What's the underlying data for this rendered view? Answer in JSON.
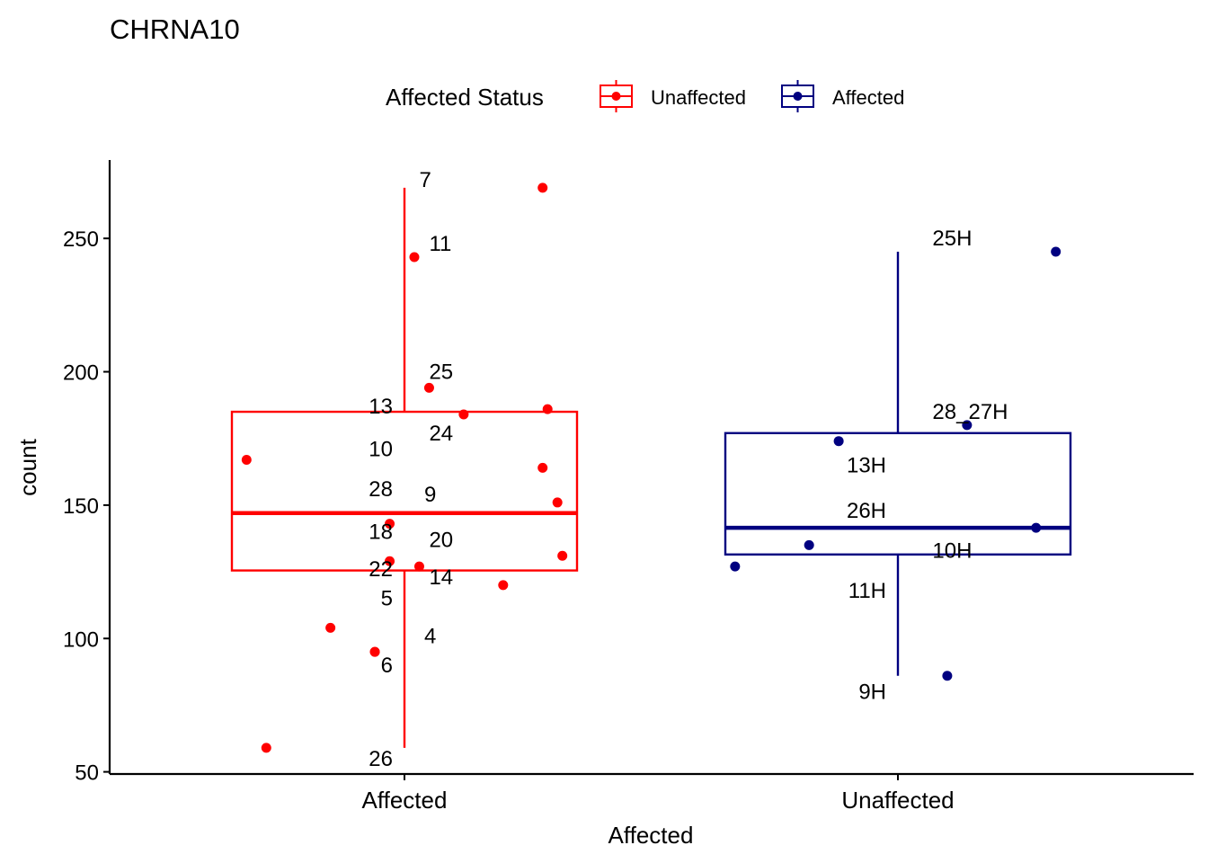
{
  "chart_data": {
    "type": "boxplot",
    "title": "CHRNA10",
    "xlabel": "Affected",
    "ylabel": "count",
    "ylim": [
      50,
      278
    ],
    "yticks": [
      50,
      100,
      150,
      200,
      250
    ],
    "grid": false,
    "legend": {
      "title": "Affected Status",
      "placement": "top",
      "entries": [
        {
          "label": "Unaffected",
          "color": "#FF0000"
        },
        {
          "label": "Affected",
          "color": "#000080"
        }
      ]
    },
    "categories": [
      "Affected",
      "Unaffected"
    ],
    "boxes": [
      {
        "category": "Affected",
        "color": "#FF0000",
        "q1": 125.5,
        "median": 147,
        "q3": 185,
        "whisker_low": 59,
        "whisker_high": 269,
        "points": [
          {
            "label": "7",
            "y": 269,
            "jitter": 0.28
          },
          {
            "label": "11",
            "y": 243,
            "jitter": 0.02
          },
          {
            "label": "25",
            "y": 194,
            "jitter": 0.05
          },
          {
            "label": "13",
            "y": 184,
            "jitter": 0.12
          },
          {
            "label": "",
            "y": 186,
            "jitter": 0.29
          },
          {
            "label": "10",
            "y": 167,
            "jitter": -0.32
          },
          {
            "label": "24",
            "y": 164,
            "jitter": 0.28
          },
          {
            "label": "9",
            "y": 151,
            "jitter": 0.31
          },
          {
            "label": "28",
            "y": 143,
            "jitter": -0.03
          },
          {
            "label": "18",
            "y": 131,
            "jitter": 0.32
          },
          {
            "label": "20",
            "y": 129,
            "jitter": -0.03
          },
          {
            "label": "22",
            "y": 127,
            "jitter": 0.03
          },
          {
            "label": "14",
            "y": 120,
            "jitter": 0.2
          },
          {
            "label": "5",
            "y": 104,
            "jitter": -0.15
          },
          {
            "label": "4",
            "y": 95,
            "jitter": -0.06
          },
          {
            "label": "6",
            "y": 95,
            "jitter": -0.06
          },
          {
            "label": "26",
            "y": 59,
            "jitter": -0.28
          }
        ]
      },
      {
        "category": "Unaffected",
        "color": "#000080",
        "q1": 131.5,
        "median": 141.5,
        "q3": 177,
        "whisker_low": 86,
        "whisker_high": 245,
        "points": [
          {
            "label": "25H",
            "y": 245,
            "jitter": 0.32
          },
          {
            "label": "28_27H",
            "y": 180,
            "jitter": 0.14
          },
          {
            "label": "13H",
            "y": 174,
            "jitter": -0.12
          },
          {
            "label": "26H",
            "y": 141.5,
            "jitter": 0.28
          },
          {
            "label": "10H",
            "y": 135,
            "jitter": -0.18
          },
          {
            "label": "11H",
            "y": 127,
            "jitter": -0.33
          },
          {
            "label": "9H",
            "y": 86,
            "jitter": 0.1
          }
        ]
      }
    ],
    "point_labels": [
      {
        "text": "7",
        "x": 0.03,
        "y": 272
      },
      {
        "text": "11",
        "x": 0.05,
        "y": 248
      },
      {
        "text": "25",
        "x": 0.05,
        "y": 200
      },
      {
        "text": "13",
        "x": -0.08,
        "y": 187
      },
      {
        "text": "24",
        "x": 0.05,
        "y": 177
      },
      {
        "text": "10",
        "x": -0.08,
        "y": 171
      },
      {
        "text": "28",
        "x": -0.08,
        "y": 156
      },
      {
        "text": "9",
        "x": 0.04,
        "y": 154
      },
      {
        "text": "18",
        "x": -0.08,
        "y": 140
      },
      {
        "text": "20",
        "x": 0.05,
        "y": 137
      },
      {
        "text": "22",
        "x": -0.08,
        "y": 126
      },
      {
        "text": "14",
        "x": 0.05,
        "y": 123
      },
      {
        "text": "5",
        "x": -0.04,
        "y": 115
      },
      {
        "text": "4",
        "x": 0.04,
        "y": 101
      },
      {
        "text": "6",
        "x": -0.04,
        "y": 90
      },
      {
        "text": "26",
        "x": -0.08,
        "y": 55
      },
      {
        "text": "25H",
        "x": 1.07,
        "y": 250
      },
      {
        "text": "28_27H",
        "x": 1.07,
        "y": 185
      },
      {
        "text": "13H",
        "x": 0.92,
        "y": 165
      },
      {
        "text": "26H",
        "x": 0.92,
        "y": 148
      },
      {
        "text": "10H",
        "x": 1.07,
        "y": 133
      },
      {
        "text": "11H",
        "x": 0.92,
        "y": 118
      },
      {
        "text": "9H",
        "x": 0.92,
        "y": 80
      }
    ]
  }
}
